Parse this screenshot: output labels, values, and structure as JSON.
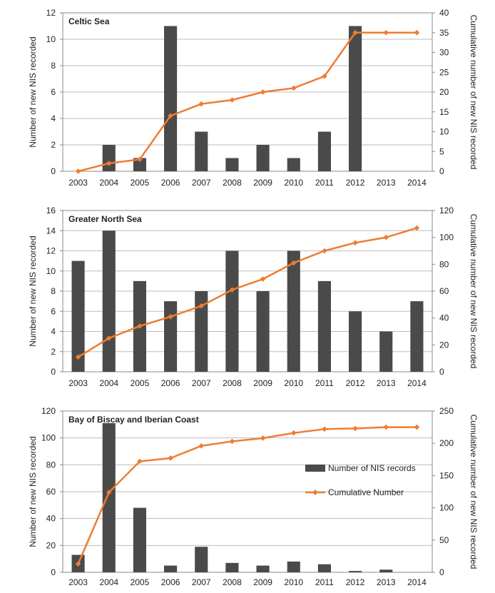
{
  "chart_data": [
    {
      "type": "bar",
      "title": "Celtic Sea",
      "categories": [
        "2003",
        "2004",
        "2005",
        "2006",
        "2007",
        "2008",
        "2009",
        "2010",
        "2011",
        "2012",
        "2013",
        "2014"
      ],
      "ylabel": "Number of new NIS recorded",
      "y2label": "Cumulative number of new NIS recorded",
      "ylim": [
        0,
        12
      ],
      "yticks": [
        0,
        2,
        4,
        6,
        8,
        10,
        12
      ],
      "y2lim": [
        0,
        40
      ],
      "y2ticks": [
        0,
        5,
        10,
        15,
        20,
        25,
        30,
        35,
        40
      ],
      "bar_series": {
        "name": "",
        "values": [
          0,
          2,
          1,
          11,
          3,
          1,
          2,
          1,
          3,
          11,
          0,
          0
        ]
      },
      "line_series": {
        "name": "",
        "values": [
          0,
          2,
          3,
          14,
          17,
          18,
          20,
          21,
          24,
          35,
          35,
          35
        ]
      },
      "legend": null
    },
    {
      "type": "bar",
      "title": "Greater North Sea",
      "categories": [
        "2003",
        "2004",
        "2005",
        "2006",
        "2007",
        "2008",
        "2009",
        "2010",
        "2011",
        "2012",
        "2013",
        "2014"
      ],
      "ylabel": "Number of new NIS recorded",
      "y2label": "Cumulative number of new NIS recorded",
      "ylim": [
        0,
        16
      ],
      "yticks": [
        0,
        2,
        4,
        6,
        8,
        10,
        12,
        14,
        16
      ],
      "y2lim": [
        0,
        120
      ],
      "y2ticks": [
        0,
        20,
        40,
        60,
        80,
        100,
        120
      ],
      "bar_series": {
        "name": "",
        "values": [
          11,
          14,
          9,
          7,
          8,
          12,
          8,
          12,
          9,
          6,
          4,
          7
        ]
      },
      "line_series": {
        "name": "",
        "values": [
          11,
          25,
          34,
          41,
          49,
          61,
          69,
          81,
          90,
          96,
          100,
          107
        ]
      },
      "legend": null
    },
    {
      "type": "bar",
      "title": "Bay of Biscay and Iberian Coast",
      "categories": [
        "2003",
        "2004",
        "2005",
        "2006",
        "2007",
        "2008",
        "2009",
        "2010",
        "2011",
        "2012",
        "2013",
        "2014"
      ],
      "ylabel": "Number of new NIS recorded",
      "y2label": "Cumulative number of new NIS recorded",
      "ylim": [
        0,
        120
      ],
      "yticks": [
        0,
        20,
        40,
        60,
        80,
        100,
        120
      ],
      "y2lim": [
        0,
        250
      ],
      "y2ticks": [
        0,
        50,
        100,
        150,
        200,
        250
      ],
      "bar_series": {
        "name": "Number of NIS records",
        "values": [
          13,
          111,
          48,
          5,
          19,
          7,
          5,
          8,
          6,
          1,
          2,
          0
        ]
      },
      "line_series": {
        "name": "Cumulative Number",
        "values": [
          13,
          124,
          172,
          177,
          196,
          203,
          208,
          216,
          222,
          223,
          225,
          225
        ]
      },
      "legend": "right"
    }
  ],
  "colors": {
    "bar": "#4a4a4a",
    "line": "#ed7d31",
    "grid": "#bdbdbd",
    "axis": "#888888",
    "text": "#222222"
  }
}
